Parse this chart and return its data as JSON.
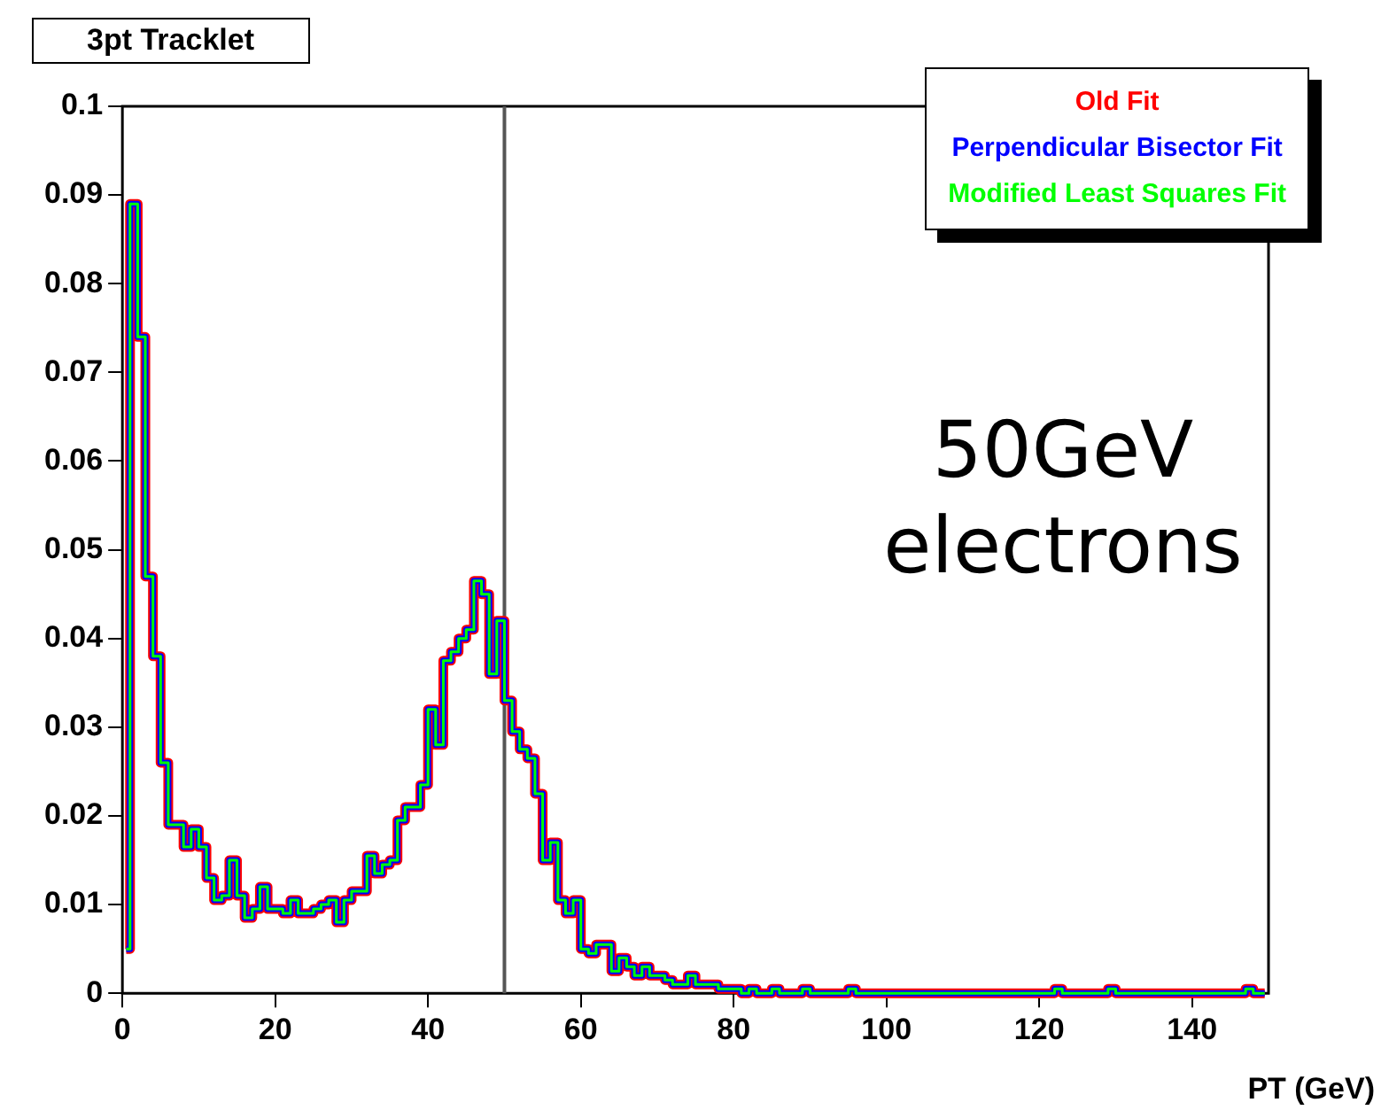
{
  "chart_data": {
    "type": "step",
    "title": "3pt Tracklet",
    "xlabel": "PT (GeV)",
    "annotations": [
      "50GeV electrons"
    ],
    "x": [
      0.5,
      1.5,
      2.5,
      3.5,
      4.5,
      5.5,
      6.5,
      7.5,
      8.5,
      9.5,
      10.5,
      11.5,
      12.5,
      13.5,
      14.5,
      15.5,
      16.5,
      17.5,
      18.5,
      19.5,
      20.5,
      21.5,
      22.5,
      23.5,
      24.5,
      25.5,
      26.5,
      27.5,
      28.5,
      29.5,
      30.5,
      31.5,
      32.5,
      33.5,
      34.5,
      35.5,
      36.5,
      37.5,
      38.5,
      39.5,
      40.5,
      41.5,
      42.5,
      43.5,
      44.5,
      45.5,
      46.5,
      47.5,
      48.5,
      49.5,
      50.5,
      51.5,
      52.5,
      53.5,
      54.5,
      55.5,
      56.5,
      57.5,
      58.5,
      59.5,
      60.5,
      61.5,
      62.5,
      63.5,
      64.5,
      65.5,
      66.5,
      67.5,
      68.5,
      69.5,
      70.5,
      71.5,
      72.5,
      73.5,
      74.5,
      75.5,
      76.5,
      77.5,
      78.5,
      79.5,
      80.5,
      81.5,
      82.5,
      83.5,
      84.5,
      85.5,
      86.5,
      87.5,
      88.5,
      89.5,
      90.5,
      91.5,
      92.5,
      93.5,
      94.5,
      95.5,
      96.5,
      97.5,
      98.5,
      99.5,
      100.5,
      101.5,
      102.5,
      103.5,
      104.5,
      105.5,
      106.5,
      107.5,
      108.5,
      109.5,
      110.5,
      111.5,
      112.5,
      113.5,
      114.5,
      115.5,
      116.5,
      117.5,
      118.5,
      119.5,
      120.5,
      121.5,
      122.5,
      123.5,
      124.5,
      125.5,
      126.5,
      127.5,
      128.5,
      129.5,
      130.5,
      131.5,
      132.5,
      133.5,
      134.5,
      135.5,
      136.5,
      137.5,
      138.5,
      139.5,
      140.5,
      141.5,
      142.5,
      143.5,
      144.5,
      145.5,
      146.5,
      147.5,
      148.5,
      149.5
    ],
    "series": [
      {
        "name": "Old Fit",
        "color": "#ff0000",
        "values": [
          0.005,
          0.089,
          0.074,
          0.047,
          0.038,
          0.026,
          0.019,
          0.019,
          0.0165,
          0.0185,
          0.0165,
          0.013,
          0.0105,
          0.011,
          0.015,
          0.011,
          0.0085,
          0.0095,
          0.012,
          0.0095,
          0.0095,
          0.009,
          0.0105,
          0.009,
          0.009,
          0.0095,
          0.01,
          0.0105,
          0.008,
          0.0105,
          0.0115,
          0.0115,
          0.0155,
          0.0135,
          0.0145,
          0.015,
          0.0195,
          0.021,
          0.021,
          0.0235,
          0.032,
          0.028,
          0.0375,
          0.0385,
          0.04,
          0.041,
          0.0465,
          0.045,
          0.036,
          0.042,
          0.033,
          0.0295,
          0.0275,
          0.0265,
          0.0225,
          0.015,
          0.017,
          0.0105,
          0.009,
          0.0105,
          0.005,
          0.0045,
          0.0055,
          0.0055,
          0.0025,
          0.004,
          0.003,
          0.002,
          0.003,
          0.002,
          0.002,
          0.0015,
          0.001,
          0.001,
          0.002,
          0.001,
          0.001,
          0.001,
          0.0005,
          0.0005,
          0.0005,
          0,
          0.0005,
          0,
          0,
          0.0005,
          0,
          0,
          0,
          0.0005,
          0,
          0,
          0,
          0,
          0,
          0.0005,
          0,
          0,
          0,
          0,
          0,
          0,
          0,
          0,
          0,
          0,
          0,
          0,
          0,
          0,
          0,
          0,
          0,
          0,
          0,
          0,
          0,
          0,
          0,
          0,
          0,
          0,
          0.0005,
          0,
          0,
          0,
          0,
          0,
          0,
          0.0005,
          0,
          0,
          0,
          0,
          0,
          0,
          0,
          0,
          0,
          0,
          0,
          0,
          0,
          0,
          0,
          0,
          0,
          0.0005,
          0,
          0
        ]
      },
      {
        "name": "Perpendicular Bisector Fit",
        "color": "#0000ff",
        "values": [
          0.005,
          0.089,
          0.074,
          0.047,
          0.038,
          0.026,
          0.019,
          0.019,
          0.0165,
          0.0185,
          0.0165,
          0.013,
          0.0105,
          0.011,
          0.015,
          0.011,
          0.0085,
          0.0095,
          0.012,
          0.0095,
          0.0095,
          0.009,
          0.0105,
          0.009,
          0.009,
          0.0095,
          0.01,
          0.0105,
          0.008,
          0.0105,
          0.0115,
          0.0115,
          0.0155,
          0.0135,
          0.0145,
          0.015,
          0.0195,
          0.021,
          0.021,
          0.0235,
          0.032,
          0.028,
          0.0375,
          0.0385,
          0.04,
          0.041,
          0.0465,
          0.045,
          0.036,
          0.042,
          0.033,
          0.0295,
          0.0275,
          0.0265,
          0.0225,
          0.015,
          0.017,
          0.0105,
          0.009,
          0.0105,
          0.005,
          0.0045,
          0.0055,
          0.0055,
          0.0025,
          0.004,
          0.003,
          0.002,
          0.003,
          0.002,
          0.002,
          0.0015,
          0.001,
          0.001,
          0.002,
          0.001,
          0.001,
          0.001,
          0.0005,
          0.0005,
          0.0005,
          0,
          0.0005,
          0,
          0,
          0.0005,
          0,
          0,
          0,
          0.0005,
          0,
          0,
          0,
          0,
          0,
          0.0005,
          0,
          0,
          0,
          0,
          0,
          0,
          0,
          0,
          0,
          0,
          0,
          0,
          0,
          0,
          0,
          0,
          0,
          0,
          0,
          0,
          0,
          0,
          0,
          0,
          0,
          0,
          0.0005,
          0,
          0,
          0,
          0,
          0,
          0,
          0.0005,
          0,
          0,
          0,
          0,
          0,
          0,
          0,
          0,
          0,
          0,
          0,
          0,
          0,
          0,
          0,
          0,
          0,
          0.0005,
          0,
          0
        ]
      },
      {
        "name": "Modified Least Squares Fit",
        "color": "#00ff00",
        "values": [
          0.005,
          0.089,
          0.074,
          0.047,
          0.038,
          0.026,
          0.019,
          0.019,
          0.0165,
          0.0185,
          0.0165,
          0.013,
          0.0105,
          0.011,
          0.015,
          0.011,
          0.0085,
          0.0095,
          0.012,
          0.0095,
          0.0095,
          0.009,
          0.0105,
          0.009,
          0.009,
          0.0095,
          0.01,
          0.0105,
          0.008,
          0.0105,
          0.0115,
          0.0115,
          0.0155,
          0.0135,
          0.0145,
          0.015,
          0.0195,
          0.021,
          0.021,
          0.0235,
          0.032,
          0.028,
          0.0375,
          0.0385,
          0.04,
          0.041,
          0.0465,
          0.045,
          0.036,
          0.042,
          0.033,
          0.0295,
          0.0275,
          0.0265,
          0.0225,
          0.015,
          0.017,
          0.0105,
          0.009,
          0.0105,
          0.005,
          0.0045,
          0.0055,
          0.0055,
          0.0025,
          0.004,
          0.003,
          0.002,
          0.003,
          0.002,
          0.002,
          0.0015,
          0.001,
          0.001,
          0.002,
          0.001,
          0.001,
          0.001,
          0.0005,
          0.0005,
          0.0005,
          0,
          0.0005,
          0,
          0,
          0.0005,
          0,
          0,
          0,
          0.0005,
          0,
          0,
          0,
          0,
          0,
          0.0005,
          0,
          0,
          0,
          0,
          0,
          0,
          0,
          0,
          0,
          0,
          0,
          0,
          0,
          0,
          0,
          0,
          0,
          0,
          0,
          0,
          0,
          0,
          0,
          0,
          0,
          0,
          0.0005,
          0,
          0,
          0,
          0,
          0,
          0,
          0.0005,
          0,
          0,
          0,
          0,
          0,
          0,
          0,
          0,
          0,
          0,
          0,
          0,
          0,
          0,
          0,
          0,
          0,
          0.0005,
          0,
          0
        ]
      }
    ],
    "xlim": [
      0,
      150
    ],
    "xticks": [
      0,
      20,
      40,
      60,
      80,
      100,
      120,
      140
    ],
    "ylim": [
      0,
      0.1
    ],
    "yticks": [
      0,
      0.01,
      0.02,
      0.03,
      0.04,
      0.05,
      0.06,
      0.07,
      0.08,
      0.09,
      0.1
    ],
    "ref_lines": [
      {
        "axis": "x",
        "value": 50,
        "color": "#555555"
      }
    ],
    "legend": "top right",
    "grid": false
  }
}
